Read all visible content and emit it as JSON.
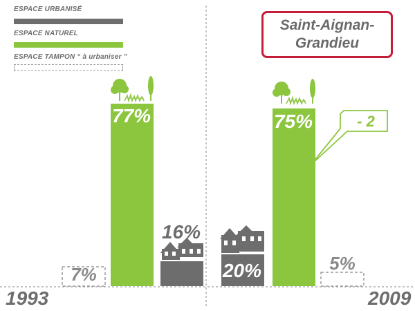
{
  "legend": {
    "urbanise": "ESPACE URBANISÉ",
    "naturel": "ESPACE NATUREL",
    "tampon": "ESPACE TAMPON “ à urbaniser ”"
  },
  "title": "Saint-Aignan-Grandieu",
  "change_label": "- 2",
  "colors": {
    "urbanise": "#6d6d6d",
    "naturel": "#8cc63f",
    "tampon": "#9a9a9a",
    "title_border": "#c41e3a"
  },
  "chart_data": {
    "type": "bar",
    "categories": [
      "1993",
      "2009"
    ],
    "series": [
      {
        "name": "ESPACE URBANISÉ",
        "values": [
          16,
          20
        ],
        "labels": [
          "16%",
          "20%"
        ]
      },
      {
        "name": "ESPACE NATUREL",
        "values": [
          77,
          75
        ],
        "labels": [
          "77%",
          "75%"
        ]
      },
      {
        "name": "ESPACE TAMPON “ à urbaniser ”",
        "values": [
          7,
          5
        ],
        "labels": [
          "7%",
          "5%"
        ]
      }
    ],
    "annotation": "- 2"
  }
}
